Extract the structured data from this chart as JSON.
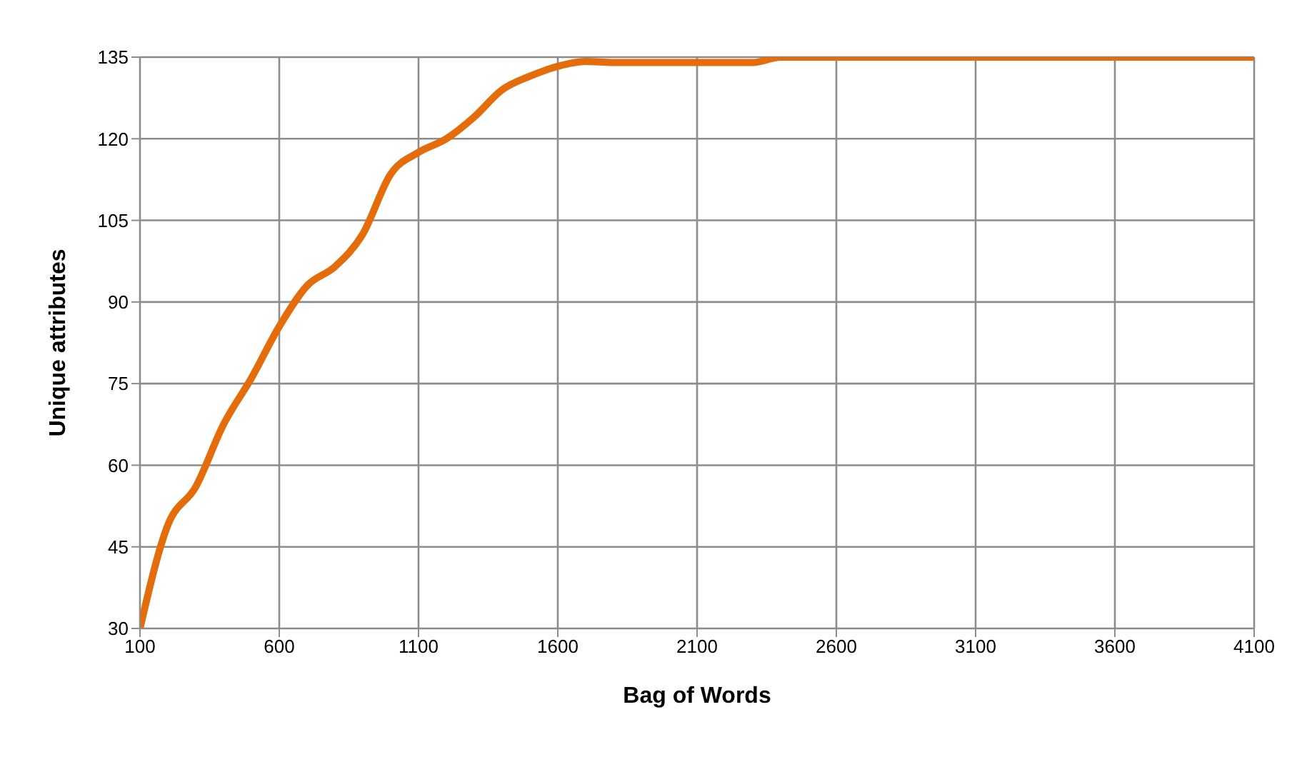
{
  "chart_data": {
    "type": "line",
    "xlabel": "Bag of Words",
    "ylabel": "Unique attributes",
    "x": [
      100,
      200,
      300,
      400,
      500,
      600,
      700,
      800,
      900,
      1000,
      1100,
      1200,
      1300,
      1400,
      1500,
      1600,
      1700,
      1800,
      1900,
      2000,
      2100,
      2200,
      2300,
      2400,
      2600,
      3100,
      3600,
      4100
    ],
    "series": [
      {
        "color": "#e46c0a",
        "values": [
          30,
          49,
          56,
          67.5,
          76,
          85.5,
          93,
          96.5,
          102.5,
          113.5,
          117.5,
          120,
          124,
          129,
          131.5,
          133.3,
          134.2,
          134,
          134,
          134,
          134,
          134,
          134,
          135,
          135,
          135,
          135,
          135
        ]
      }
    ],
    "xlim": [
      100,
      4100
    ],
    "xticks": [
      100,
      600,
      1100,
      1600,
      2100,
      2600,
      3100,
      3600,
      4100
    ],
    "ylim": [
      30,
      135
    ],
    "yticks": [
      30,
      45,
      60,
      75,
      90,
      105,
      120,
      135
    ],
    "grid": true,
    "legend": false,
    "marker": "none",
    "line_style": "solid"
  }
}
